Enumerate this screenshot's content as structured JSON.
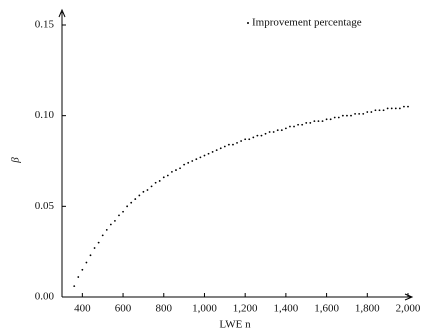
{
  "chart_data": {
    "type": "scatter",
    "x_label": "LWE n",
    "y_label": "β",
    "legend_position": "upper right",
    "series": [
      {
        "name": "Improvement percentage",
        "color": "#000000",
        "x": [
          360,
          380,
          400,
          420,
          440,
          460,
          480,
          500,
          520,
          540,
          560,
          580,
          600,
          620,
          640,
          660,
          680,
          700,
          720,
          740,
          760,
          780,
          800,
          820,
          840,
          860,
          880,
          900,
          920,
          940,
          960,
          980,
          1000,
          1020,
          1040,
          1060,
          1080,
          1100,
          1120,
          1140,
          1160,
          1180,
          1200,
          1220,
          1240,
          1260,
          1280,
          1300,
          1320,
          1340,
          1360,
          1380,
          1400,
          1420,
          1440,
          1460,
          1480,
          1500,
          1520,
          1540,
          1560,
          1580,
          1600,
          1620,
          1640,
          1660,
          1680,
          1700,
          1720,
          1740,
          1760,
          1780,
          1800,
          1820,
          1840,
          1860,
          1880,
          1900,
          1920,
          1940,
          1960,
          1980,
          2000
        ],
        "values": [
          0.006,
          0.011,
          0.015,
          0.019,
          0.023,
          0.027,
          0.03,
          0.034,
          0.037,
          0.04,
          0.042,
          0.045,
          0.047,
          0.05,
          0.052,
          0.054,
          0.056,
          0.058,
          0.059,
          0.061,
          0.063,
          0.064,
          0.066,
          0.067,
          0.069,
          0.07,
          0.071,
          0.073,
          0.074,
          0.075,
          0.076,
          0.077,
          0.078,
          0.079,
          0.08,
          0.081,
          0.082,
          0.083,
          0.084,
          0.084,
          0.085,
          0.086,
          0.087,
          0.087,
          0.088,
          0.089,
          0.089,
          0.09,
          0.091,
          0.091,
          0.092,
          0.092,
          0.093,
          0.094,
          0.094,
          0.095,
          0.095,
          0.096,
          0.096,
          0.097,
          0.097,
          0.097,
          0.098,
          0.098,
          0.099,
          0.099,
          0.1,
          0.1,
          0.1,
          0.101,
          0.101,
          0.101,
          0.102,
          0.102,
          0.103,
          0.103,
          0.103,
          0.104,
          0.104,
          0.104,
          0.104,
          0.105,
          0.105
        ]
      }
    ],
    "xlim": [
      300,
      2000
    ],
    "ylim": [
      0,
      0.15
    ],
    "xticks": [
      400,
      600,
      800,
      {
        "value": 1000,
        "label": "1,000"
      },
      {
        "value": 1200,
        "label": "1,200"
      },
      {
        "value": 1400,
        "label": "1,400"
      },
      {
        "value": 1600,
        "label": "1,600"
      },
      {
        "value": 1800,
        "label": "1,800"
      },
      {
        "value": 2000,
        "label": "2,000"
      }
    ],
    "yticks": [
      {
        "value": 0,
        "label": "0.00"
      },
      {
        "value": 0.05,
        "label": "0.05"
      },
      {
        "value": 0.1,
        "label": "0.10"
      },
      {
        "value": 0.15,
        "label": "0.15"
      }
    ]
  }
}
